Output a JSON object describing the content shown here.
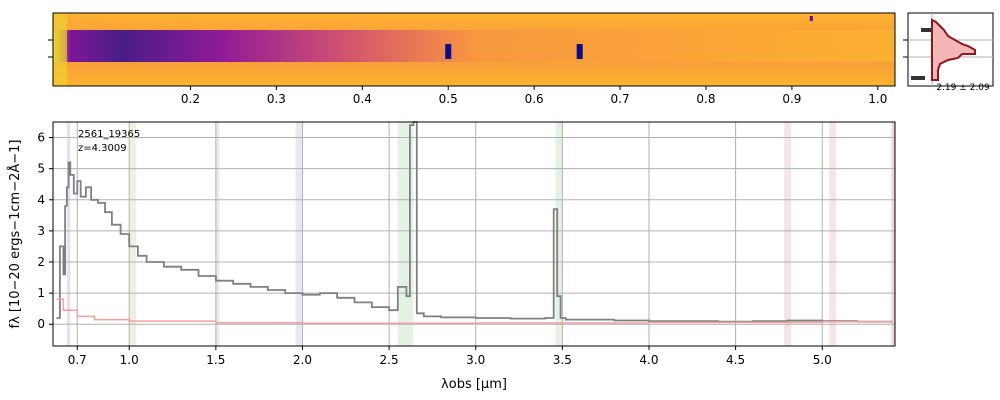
{
  "chart_data": [
    {
      "type": "heatmap",
      "panel": "2d-spectrum",
      "top_axis_ticks": [
        "0.2",
        "0.3",
        "0.4",
        "0.5",
        "0.6",
        "0.7",
        "0.8",
        "0.9",
        "1.0"
      ],
      "top_axis_tick_values": [
        0.2,
        0.3,
        0.4,
        0.5,
        0.6,
        0.7,
        0.8,
        0.9,
        1.0
      ],
      "colormap": "plasma",
      "emission_features_x": [
        0.5,
        0.653,
        0.922
      ]
    },
    {
      "type": "area",
      "panel": "profile-histogram",
      "annotation": "2.19 ± 2.09",
      "fill_color": "#f4b6b6",
      "line_color": "#8b1a1a"
    },
    {
      "type": "line",
      "panel": "1d-spectrum",
      "annotation_id": "2561_19365",
      "annotation_z": "z=4.3009",
      "xlabel": "λobs [μm]",
      "ylabel": "fλ [10−20 ergs−1cm−2Å−1]",
      "ylim": [
        -0.7,
        6.5
      ],
      "y_ticks": [
        0,
        1,
        2,
        3,
        4,
        5,
        6
      ],
      "x_tick_labels": [
        "0.7",
        "1.0",
        "1.5",
        "2.0",
        "2.5",
        "3.0",
        "3.5",
        "4.0",
        "4.5",
        "5.0"
      ],
      "x_tick_values": [
        0.7,
        1.0,
        1.5,
        2.0,
        2.5,
        3.0,
        3.5,
        4.0,
        4.5,
        5.0
      ],
      "grid": true,
      "series": [
        {
          "color": "#808080",
          "x": [
            0.58,
            0.6,
            0.62,
            0.63,
            0.64,
            0.65,
            0.66,
            0.68,
            0.7,
            0.72,
            0.75,
            0.78,
            0.82,
            0.86,
            0.9,
            0.95,
            1.0,
            1.05,
            1.1,
            1.2,
            1.3,
            1.4,
            1.5,
            1.6,
            1.7,
            1.8,
            1.9,
            2.0,
            2.1,
            2.2,
            2.3,
            2.4,
            2.5,
            2.55,
            2.6,
            2.62,
            2.64,
            2.66,
            2.7,
            2.8,
            3.0,
            3.2,
            3.4,
            3.45,
            3.47,
            3.49,
            3.52,
            3.6,
            3.8,
            4.0,
            4.2,
            4.4,
            4.6,
            4.8,
            5.0,
            5.2,
            5.4
          ],
          "y": [
            0.2,
            2.5,
            1.6,
            3.8,
            4.4,
            5.2,
            4.8,
            4.2,
            4.6,
            4.1,
            4.4,
            4.0,
            3.9,
            3.6,
            3.2,
            2.9,
            2.5,
            2.2,
            2.0,
            1.85,
            1.75,
            1.55,
            1.4,
            1.3,
            1.2,
            1.1,
            1.0,
            0.95,
            1.0,
            0.85,
            0.7,
            0.55,
            0.45,
            1.2,
            0.9,
            6.4,
            6.5,
            0.35,
            0.25,
            0.22,
            0.2,
            0.18,
            0.2,
            3.7,
            0.9,
            0.2,
            0.15,
            0.15,
            0.12,
            0.1,
            0.1,
            0.08,
            0.1,
            0.12,
            0.1,
            0.08,
            0.05
          ]
        },
        {
          "color": "#f2a0a0",
          "x": [
            0.58,
            0.62,
            0.7,
            0.8,
            1.0,
            1.5,
            2.0,
            3.0,
            4.0,
            5.0,
            5.4
          ],
          "y": [
            0.8,
            0.45,
            0.25,
            0.15,
            0.1,
            0.05,
            0.03,
            0.04,
            0.06,
            0.08,
            0.1
          ]
        }
      ],
      "shaded_bands": [
        {
          "x": [
            0.64,
            0.66
          ],
          "color": "#e6d4f0"
        },
        {
          "x": [
            1.0,
            1.04
          ],
          "color": "#e8f0dc"
        },
        {
          "x": [
            1.5,
            1.52
          ],
          "color": "#dde6f0"
        },
        {
          "x": [
            1.96,
            2.0
          ],
          "color": "#e0e4ee"
        },
        {
          "x": [
            2.55,
            2.64
          ],
          "color": "#dcefdc"
        },
        {
          "x": [
            3.46,
            3.5
          ],
          "color": "#dcefdc"
        },
        {
          "x": [
            4.78,
            4.82
          ],
          "color": "#f2dede"
        },
        {
          "x": [
            5.04,
            5.08
          ],
          "color": "#f2dede"
        },
        {
          "x": [
            5.4,
            5.42
          ],
          "color": "#f2c8c8"
        }
      ]
    }
  ]
}
